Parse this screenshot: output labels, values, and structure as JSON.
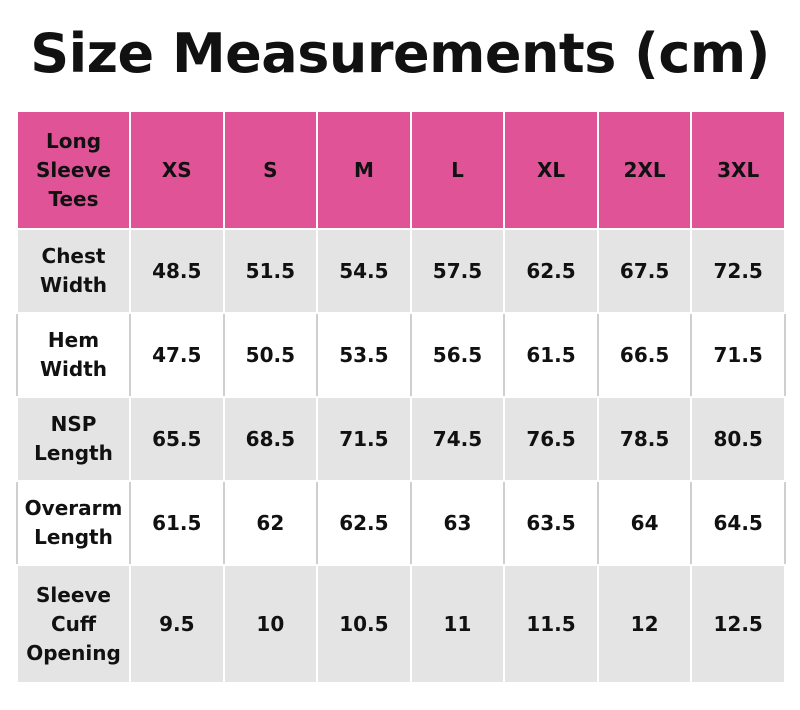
{
  "title": "Size Measurements (cm)",
  "table": {
    "corner": [
      "Long",
      "Sleeve",
      "Tees"
    ],
    "header": [
      "XS",
      "S",
      "M",
      "L",
      "XL",
      "2XL",
      "3XL"
    ],
    "rows": [
      {
        "label": [
          "Chest",
          "Width"
        ],
        "values": [
          48.5,
          51.5,
          54.5,
          57.5,
          62.5,
          67.5,
          72.5
        ]
      },
      {
        "label": [
          "Hem",
          "Width"
        ],
        "values": [
          47.5,
          50.5,
          53.5,
          56.5,
          61.5,
          66.5,
          71.5
        ]
      },
      {
        "label": [
          "NSP",
          "Length"
        ],
        "values": [
          65.5,
          68.5,
          71.5,
          74.5,
          76.5,
          78.5,
          80.5
        ]
      },
      {
        "label": [
          "Overarm",
          "Length"
        ],
        "values": [
          61.5,
          62,
          62.5,
          63,
          63.5,
          64,
          64.5
        ]
      },
      {
        "label": [
          "Sleeve",
          "Cuff",
          "Opening"
        ],
        "values": [
          9.5,
          10,
          10.5,
          11,
          11.5,
          12,
          12.5
        ]
      }
    ]
  }
}
